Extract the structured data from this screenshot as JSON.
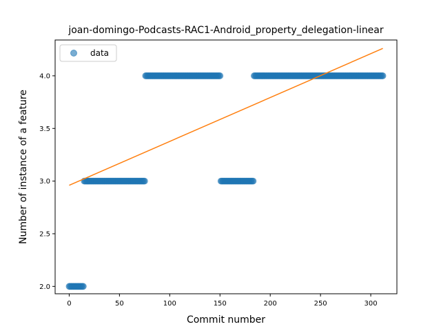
{
  "chart_data": {
    "type": "scatter",
    "title": "joan-domingo-Podcasts-RAC1-Android_property_delegation-linear",
    "xlabel": "Commit number",
    "ylabel": "Number of instance of a feature",
    "xlim": [
      -14,
      326
    ],
    "ylim": [
      1.93,
      4.34
    ],
    "x_ticks": [
      0,
      50,
      100,
      150,
      200,
      250,
      300
    ],
    "y_ticks": [
      2.0,
      2.5,
      3.0,
      3.5,
      4.0
    ],
    "y_tick_labels": [
      "2.0",
      "2.5",
      "3.0",
      "3.5",
      "4.0"
    ],
    "grid": false,
    "legend_position": "upper-left",
    "series": [
      {
        "name": "data",
        "kind": "scatter",
        "color": "#1f77b4",
        "segments": [
          {
            "x_start": 0,
            "x_end": 14,
            "y": 2
          },
          {
            "x_start": 15,
            "x_end": 75,
            "y": 3
          },
          {
            "x_start": 76,
            "x_end": 150,
            "y": 4
          },
          {
            "x_start": 151,
            "x_end": 183,
            "y": 3
          },
          {
            "x_start": 184,
            "x_end": 312,
            "y": 4
          }
        ]
      },
      {
        "kind": "line",
        "color": "#ff7f0e",
        "x": [
          0,
          312
        ],
        "y": [
          2.96,
          4.26
        ]
      }
    ]
  }
}
